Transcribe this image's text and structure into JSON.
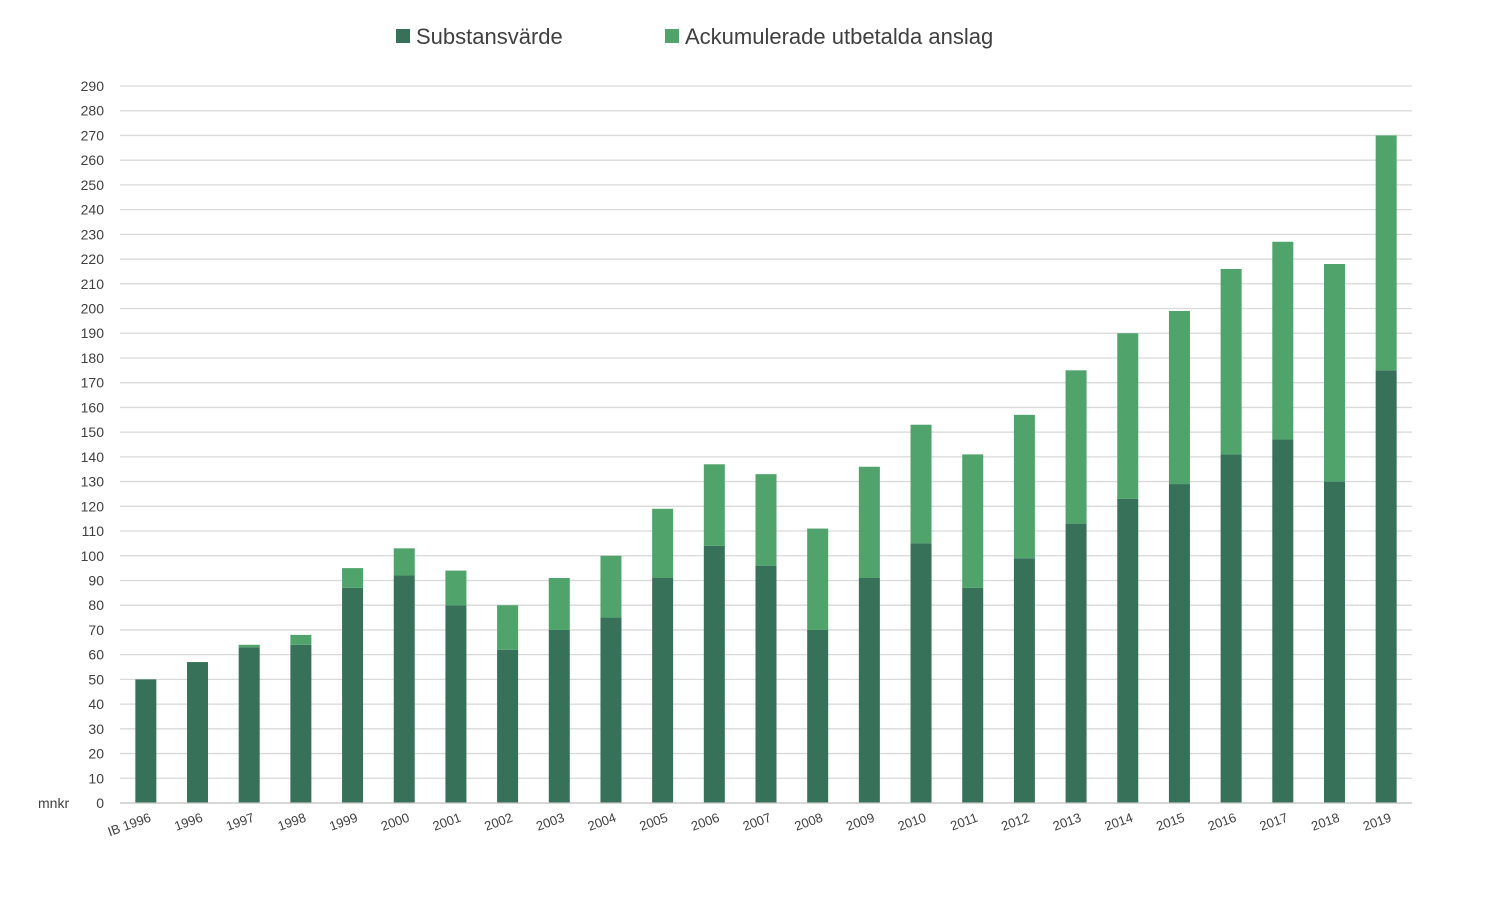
{
  "chart_data": {
    "type": "bar",
    "stacked": true,
    "categories": [
      "IB 1996",
      "1996",
      "1997",
      "1998",
      "1999",
      "2000",
      "2001",
      "2002",
      "2003",
      "2004",
      "2005",
      "2006",
      "2007",
      "2008",
      "2009",
      "2010",
      "2011",
      "2012",
      "2013",
      "2014",
      "2015",
      "2016",
      "2017",
      "2018",
      "2019"
    ],
    "series": [
      {
        "name": "Substansvärde",
        "color": "#38715a",
        "values": [
          50,
          57,
          63,
          64,
          87,
          92,
          80,
          62,
          70,
          75,
          91,
          104,
          96,
          70,
          91,
          105,
          87,
          99,
          113,
          123,
          129,
          141,
          147,
          130,
          175
        ]
      },
      {
        "name": "Ackumulerade utbetalda anslag",
        "color": "#4fa36b",
        "values": [
          0,
          0,
          1,
          4,
          8,
          11,
          14,
          18,
          21,
          25,
          28,
          33,
          37,
          41,
          45,
          48,
          54,
          58,
          62,
          67,
          70,
          75,
          80,
          88,
          95
        ]
      }
    ],
    "ylabel": "mnkr",
    "ylim": [
      0,
      290
    ],
    "yticks": [
      0,
      10,
      20,
      30,
      40,
      50,
      60,
      70,
      80,
      90,
      100,
      110,
      120,
      130,
      140,
      150,
      160,
      170,
      180,
      190,
      200,
      210,
      220,
      230,
      240,
      250,
      260,
      270,
      280,
      290
    ],
    "grid": true,
    "legend_position": "top-center"
  }
}
